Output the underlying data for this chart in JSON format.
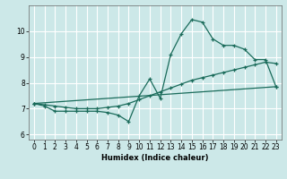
{
  "title": "",
  "xlabel": "Humidex (Indice chaleur)",
  "bg_color": "#cce8e8",
  "grid_color": "#ffffff",
  "line_color": "#1a6b5a",
  "xlim": [
    -0.5,
    23.5
  ],
  "ylim": [
    5.8,
    11.0
  ],
  "yticks": [
    6,
    7,
    8,
    9,
    10
  ],
  "xticks": [
    0,
    1,
    2,
    3,
    4,
    5,
    6,
    7,
    8,
    9,
    10,
    11,
    12,
    13,
    14,
    15,
    16,
    17,
    18,
    19,
    20,
    21,
    22,
    23
  ],
  "line1_x": [
    0,
    1,
    2,
    3,
    4,
    5,
    6,
    7,
    8,
    9,
    10,
    11,
    12,
    13,
    14,
    15,
    16,
    17,
    18,
    19,
    20,
    21,
    22,
    23
  ],
  "line1_y": [
    7.2,
    7.1,
    6.9,
    6.9,
    6.9,
    6.9,
    6.9,
    6.85,
    6.75,
    6.5,
    7.5,
    8.15,
    7.4,
    9.1,
    9.9,
    10.45,
    10.35,
    9.7,
    9.45,
    9.45,
    9.3,
    8.9,
    8.9,
    7.85
  ],
  "line2_x": [
    0,
    1,
    2,
    3,
    4,
    5,
    6,
    7,
    8,
    9,
    10,
    11,
    12,
    13,
    14,
    15,
    16,
    17,
    18,
    19,
    20,
    21,
    22,
    23
  ],
  "line2_y": [
    7.2,
    7.15,
    7.1,
    7.05,
    7.0,
    7.0,
    7.0,
    7.05,
    7.1,
    7.2,
    7.35,
    7.5,
    7.65,
    7.8,
    7.95,
    8.1,
    8.2,
    8.3,
    8.4,
    8.5,
    8.6,
    8.7,
    8.8,
    8.75
  ],
  "line3_x": [
    0,
    23
  ],
  "line3_y": [
    7.2,
    7.85
  ]
}
